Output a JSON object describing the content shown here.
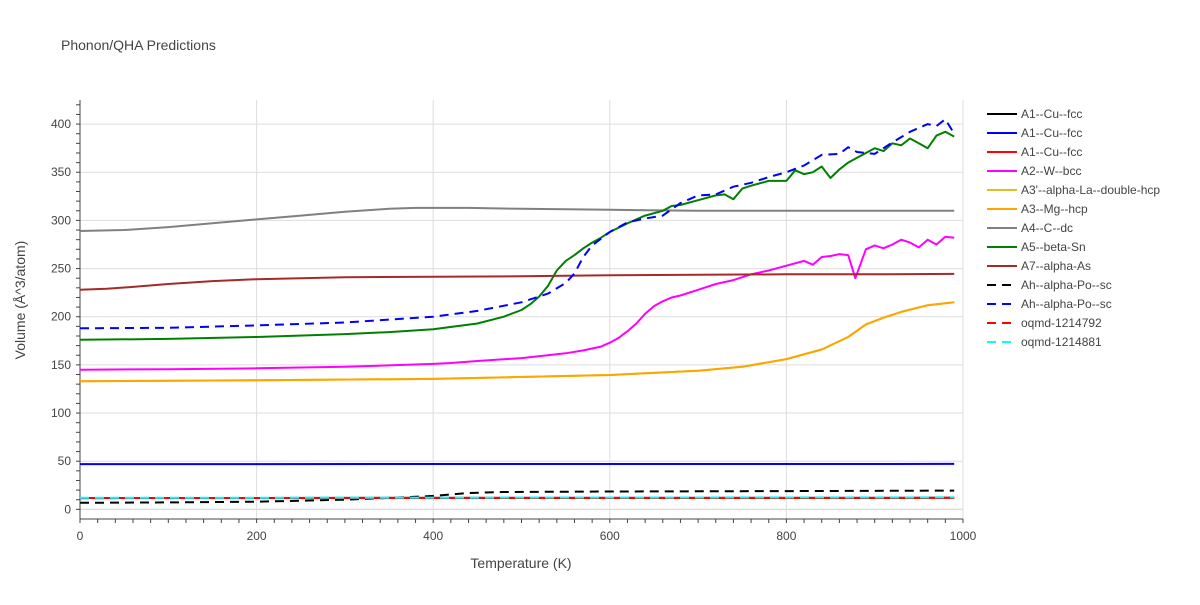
{
  "chart_data": {
    "type": "line",
    "title": "Phonon/QHA Predictions",
    "xlabel": "Temperature (K)",
    "ylabel": "Volume (Å^3/atom)",
    "xlim": [
      0,
      1000
    ],
    "ylim": [
      -10,
      425
    ],
    "xticks": [
      0,
      200,
      400,
      600,
      800,
      1000
    ],
    "yticks": [
      0,
      50,
      100,
      150,
      200,
      250,
      300,
      350,
      400
    ],
    "grid": true,
    "legend_position": "right",
    "series": [
      {
        "name": "A1--Cu--fcc",
        "color": "#000000",
        "dash": "solid",
        "x": [
          0,
          990
        ],
        "y": [
          11.8,
          12.0
        ]
      },
      {
        "name": "A1--Cu--fcc",
        "color": "#0000ff",
        "dash": "solid",
        "x": [
          0,
          200,
          400,
          600,
          800,
          990
        ],
        "y": [
          47.0,
          47.0,
          47.1,
          47.1,
          47.1,
          47.2
        ]
      },
      {
        "name": "A1--Cu--fcc",
        "color": "#ff0000",
        "dash": "solid",
        "x": [
          0,
          990
        ],
        "y": [
          11.8,
          12.0
        ]
      },
      {
        "name": "A2--W--bcc",
        "color": "#ff00ff",
        "dash": "solid",
        "x": [
          0,
          100,
          200,
          300,
          400,
          420,
          450,
          500,
          550,
          570,
          590,
          600,
          610,
          620,
          630,
          640,
          650,
          660,
          670,
          680,
          700,
          720,
          740,
          760,
          780,
          800,
          820,
          830,
          840,
          850,
          860,
          870,
          878,
          890,
          900,
          910,
          920,
          930,
          940,
          950,
          960,
          970,
          980,
          990
        ],
        "y": [
          145,
          145.5,
          146.5,
          148,
          151,
          152,
          154,
          157,
          162,
          165,
          169,
          173,
          178,
          185,
          193,
          203,
          211,
          216,
          220,
          222,
          228,
          234,
          238,
          244,
          248,
          253,
          258,
          254,
          262,
          263,
          265,
          264,
          240,
          270,
          274,
          271,
          275,
          280,
          277,
          272,
          280,
          275,
          283,
          282
        ]
      },
      {
        "name": "A3'--alpha-La--double-hcp",
        "color": "#d4c227",
        "dash": "solid",
        "x": [
          0,
          200,
          400,
          600,
          700,
          750,
          800,
          840,
          870,
          890,
          910,
          930,
          960,
          990
        ],
        "y": [
          133,
          134,
          135.5,
          139.5,
          144,
          148,
          156,
          166,
          179,
          192,
          199,
          205,
          212,
          215
        ]
      },
      {
        "name": "A3--Mg--hcp",
        "color": "#ffa500",
        "dash": "solid",
        "x": [
          0,
          200,
          400,
          600,
          700,
          750,
          800,
          840,
          870,
          890,
          910,
          930,
          960,
          990
        ],
        "y": [
          133,
          134,
          135.5,
          139.5,
          144,
          148,
          156,
          166,
          179,
          192,
          199,
          205,
          212,
          215
        ]
      },
      {
        "name": "A4--C--dc",
        "color": "#808080",
        "dash": "solid",
        "x": [
          0,
          50,
          100,
          150,
          200,
          250,
          300,
          350,
          380,
          440,
          500,
          600,
          700,
          800,
          900,
          990
        ],
        "y": [
          289,
          290,
          293,
          297,
          301,
          305,
          309,
          312,
          313,
          313,
          312,
          311,
          310,
          310,
          310,
          310
        ]
      },
      {
        "name": "A5--beta-Sn",
        "color": "#008000",
        "dash": "solid",
        "x": [
          0,
          100,
          200,
          300,
          350,
          400,
          450,
          480,
          500,
          510,
          520,
          530,
          540,
          550,
          560,
          570,
          580,
          590,
          600,
          620,
          640,
          660,
          670,
          680,
          700,
          720,
          730,
          740,
          750,
          760,
          780,
          800,
          810,
          820,
          830,
          840,
          850,
          860,
          870,
          880,
          890,
          900,
          910,
          920,
          930,
          940,
          950,
          960,
          970,
          980,
          990
        ],
        "y": [
          176,
          177,
          179,
          182,
          184,
          187,
          193,
          200,
          207,
          213,
          221,
          232,
          248,
          258,
          264,
          271,
          277,
          282,
          288,
          297,
          305,
          310,
          315,
          316,
          321,
          326,
          327,
          322,
          333,
          336,
          341,
          341,
          352,
          348,
          350,
          356,
          344,
          353,
          360,
          365,
          370,
          375,
          372,
          380,
          378,
          385,
          380,
          375,
          388,
          392,
          387
        ]
      },
      {
        "name": "A7--alpha-As",
        "color": "#a52a2a",
        "dash": "solid",
        "x": [
          0,
          30,
          60,
          100,
          150,
          200,
          250,
          300,
          400,
          500,
          600,
          700,
          800,
          900,
          990
        ],
        "y": [
          228,
          229,
          231,
          234,
          237,
          239,
          240,
          241,
          241.5,
          242,
          243,
          243.5,
          244,
          244,
          244.5
        ]
      },
      {
        "name": "Ah--alpha-Po--sc",
        "color": "#000000",
        "dash": "dash",
        "x": [
          0,
          100,
          200,
          300,
          380,
          400,
          420,
          440,
          480,
          600,
          800,
          990
        ],
        "y": [
          6.8,
          7.2,
          8.0,
          10.0,
          13.0,
          14.0,
          15.5,
          17.0,
          18.0,
          18.5,
          19.0,
          19.5
        ]
      },
      {
        "name": "Ah--alpha-Po--sc",
        "color": "#0000ff",
        "dash": "dash",
        "x": [
          0,
          100,
          200,
          300,
          400,
          450,
          500,
          530,
          550,
          560,
          570,
          580,
          590,
          600,
          620,
          640,
          660,
          680,
          700,
          720,
          740,
          760,
          780,
          800,
          820,
          840,
          860,
          870,
          880,
          900,
          920,
          940,
          960,
          970,
          980,
          990
        ],
        "y": [
          188,
          188.5,
          191,
          194,
          200,
          206,
          215,
          224,
          235,
          245,
          262,
          274,
          281,
          288,
          298,
          302,
          305,
          318,
          326,
          327,
          335,
          339,
          345,
          350,
          357,
          368,
          369,
          376,
          371,
          369,
          381,
          392,
          400,
          398,
          405,
          390
        ]
      },
      {
        "name": "oqmd-1214792",
        "color": "#ff0000",
        "dash": "dash",
        "x": [
          0,
          990
        ],
        "y": [
          11.6,
          11.9
        ]
      },
      {
        "name": "oqmd-1214881",
        "color": "#00ffff",
        "dash": "dash",
        "x": [
          0,
          990
        ],
        "y": [
          12.0,
          12.5
        ]
      }
    ]
  }
}
